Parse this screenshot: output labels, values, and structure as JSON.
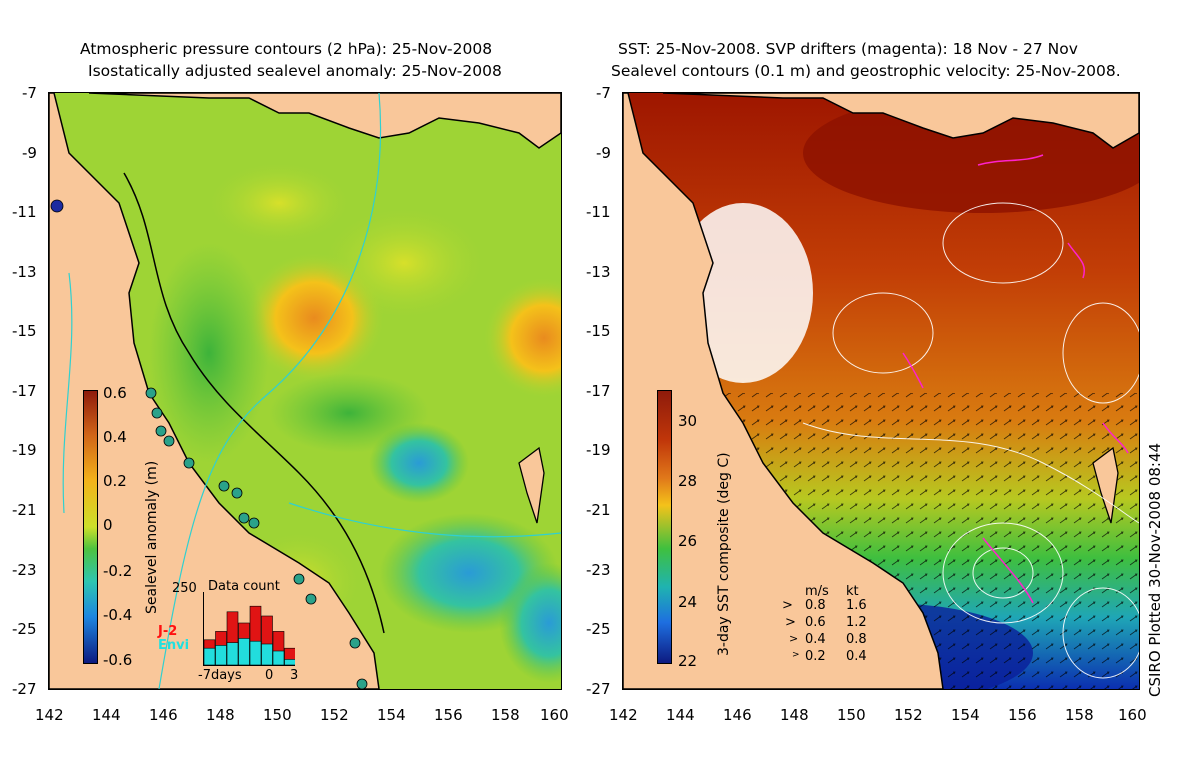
{
  "left_panel": {
    "title_line1": "Atmospheric pressure contours (2 hPa): 25-Nov-2008",
    "title_line2": "Isostatically adjusted sealevel anomaly: 25-Nov-2008",
    "colorbar_label": "Sealevel anomaly (m)",
    "colorbar_ticks": [
      "0.6",
      "0.4",
      "0.2",
      "0",
      "-0.2",
      "-0.4",
      "-0.6"
    ],
    "inset": {
      "title": "Data count",
      "ymax": "250",
      "legend_j2": "J-2",
      "legend_envi": "Envi",
      "x_labels": [
        "-7days",
        "0",
        "3"
      ],
      "j2_counts": [
        90,
        120,
        190,
        150,
        210,
        175,
        120,
        60
      ],
      "envi_counts": [
        60,
        70,
        80,
        95,
        85,
        75,
        50,
        20
      ],
      "ymax_value": 250
    }
  },
  "right_panel": {
    "title_line1": "SST: 25-Nov-2008. SVP drifters (magenta): 18 Nov - 27 Nov",
    "title_line2": "Sealevel contours (0.1 m) and geostrophic velocity: 25-Nov-2008.",
    "colorbar_label": "3-day SST composite (deg C)",
    "colorbar_ticks": [
      "30",
      "28",
      "26",
      "24",
      "22"
    ],
    "velocity_legend": {
      "header_ms": "m/s",
      "header_kt": "kt",
      "rows": [
        {
          "ms": "0.8",
          "kt": "1.6"
        },
        {
          "ms": "0.6",
          "kt": "1.2"
        },
        {
          "ms": "0.4",
          "kt": "0.8"
        },
        {
          "ms": "0.2",
          "kt": "0.4"
        }
      ]
    }
  },
  "axes": {
    "lat_labels": [
      "-7",
      "-9",
      "-11",
      "-13",
      "-15",
      "-17",
      "-19",
      "-21",
      "-23",
      "-25",
      "-27"
    ],
    "lon_labels": [
      "142",
      "144",
      "146",
      "148",
      "150",
      "152",
      "154",
      "156",
      "158",
      "160"
    ],
    "lat_range": [
      -27,
      -7
    ],
    "lon_range": [
      142,
      160
    ]
  },
  "credit": "CSIRO Plotted 30-Nov-2008 08:44",
  "colors": {
    "land": "#f9c79a",
    "sla_pos": "#e98b1e",
    "sla_zero": "#5cc43e",
    "sla_neg": "#2a9bd6",
    "sst_hot": "#a51d00",
    "sst_mid": "#3fc03f",
    "sst_cold": "#0b2fb0",
    "drifter": "#ff22cc",
    "pressure_contour": "#30d0d0"
  }
}
